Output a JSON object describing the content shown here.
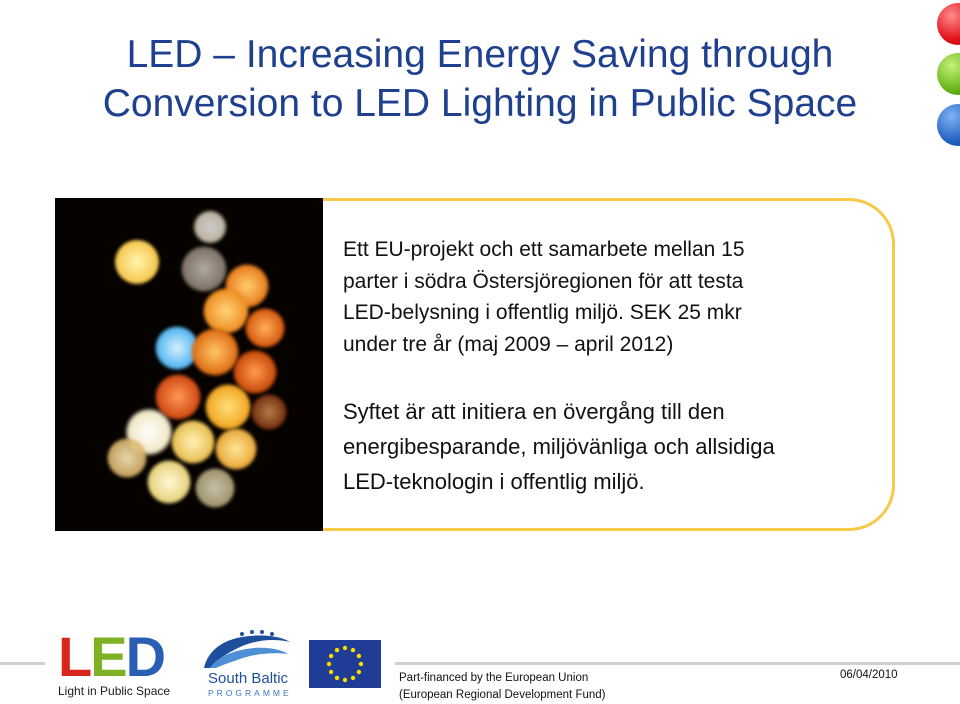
{
  "slide": {
    "title_line1": "LED – Increasing Energy Saving through",
    "title_line2": "Conversion to LED Lighting in Public Space",
    "paragraph1": [
      "Ett EU-projekt och ett samarbete  mellan 15",
      "parter i södra Östersjöregionen för att  testa",
      "LED-belysning i offentlig miljö. SEK 25 mkr",
      "under tre år (maj 2009 – april 2012)"
    ],
    "paragraph2": [
      "Syftet är att initiera en övergång till den",
      "energibesparande, miljövänliga och allsidiga",
      "LED-teknologin i offentlig miljö."
    ]
  },
  "footer": {
    "led_logo_l": "L",
    "led_logo_e": "E",
    "led_logo_d": "D",
    "led_logo_sub": "Light in Public Space",
    "south_baltic_title": "South Baltic",
    "south_baltic_sub": "PROGRAMME",
    "funding_line1": "Part-financed by the European Union",
    "funding_line2": "(European Regional Development Fund)",
    "date": "06/04/2010"
  },
  "colors": {
    "title": "#1f3f8f",
    "box_border": "#f7c948",
    "dot_red": "#e0101a",
    "dot_green": "#69b519",
    "dot_blue": "#2462c4",
    "eu_blue": "#1f3c97",
    "eu_star": "#ffdd00"
  },
  "icons": [
    "red-dot-icon",
    "green-dot-icon",
    "blue-dot-icon",
    "eu-flag-icon",
    "south-baltic-wave-icon"
  ]
}
